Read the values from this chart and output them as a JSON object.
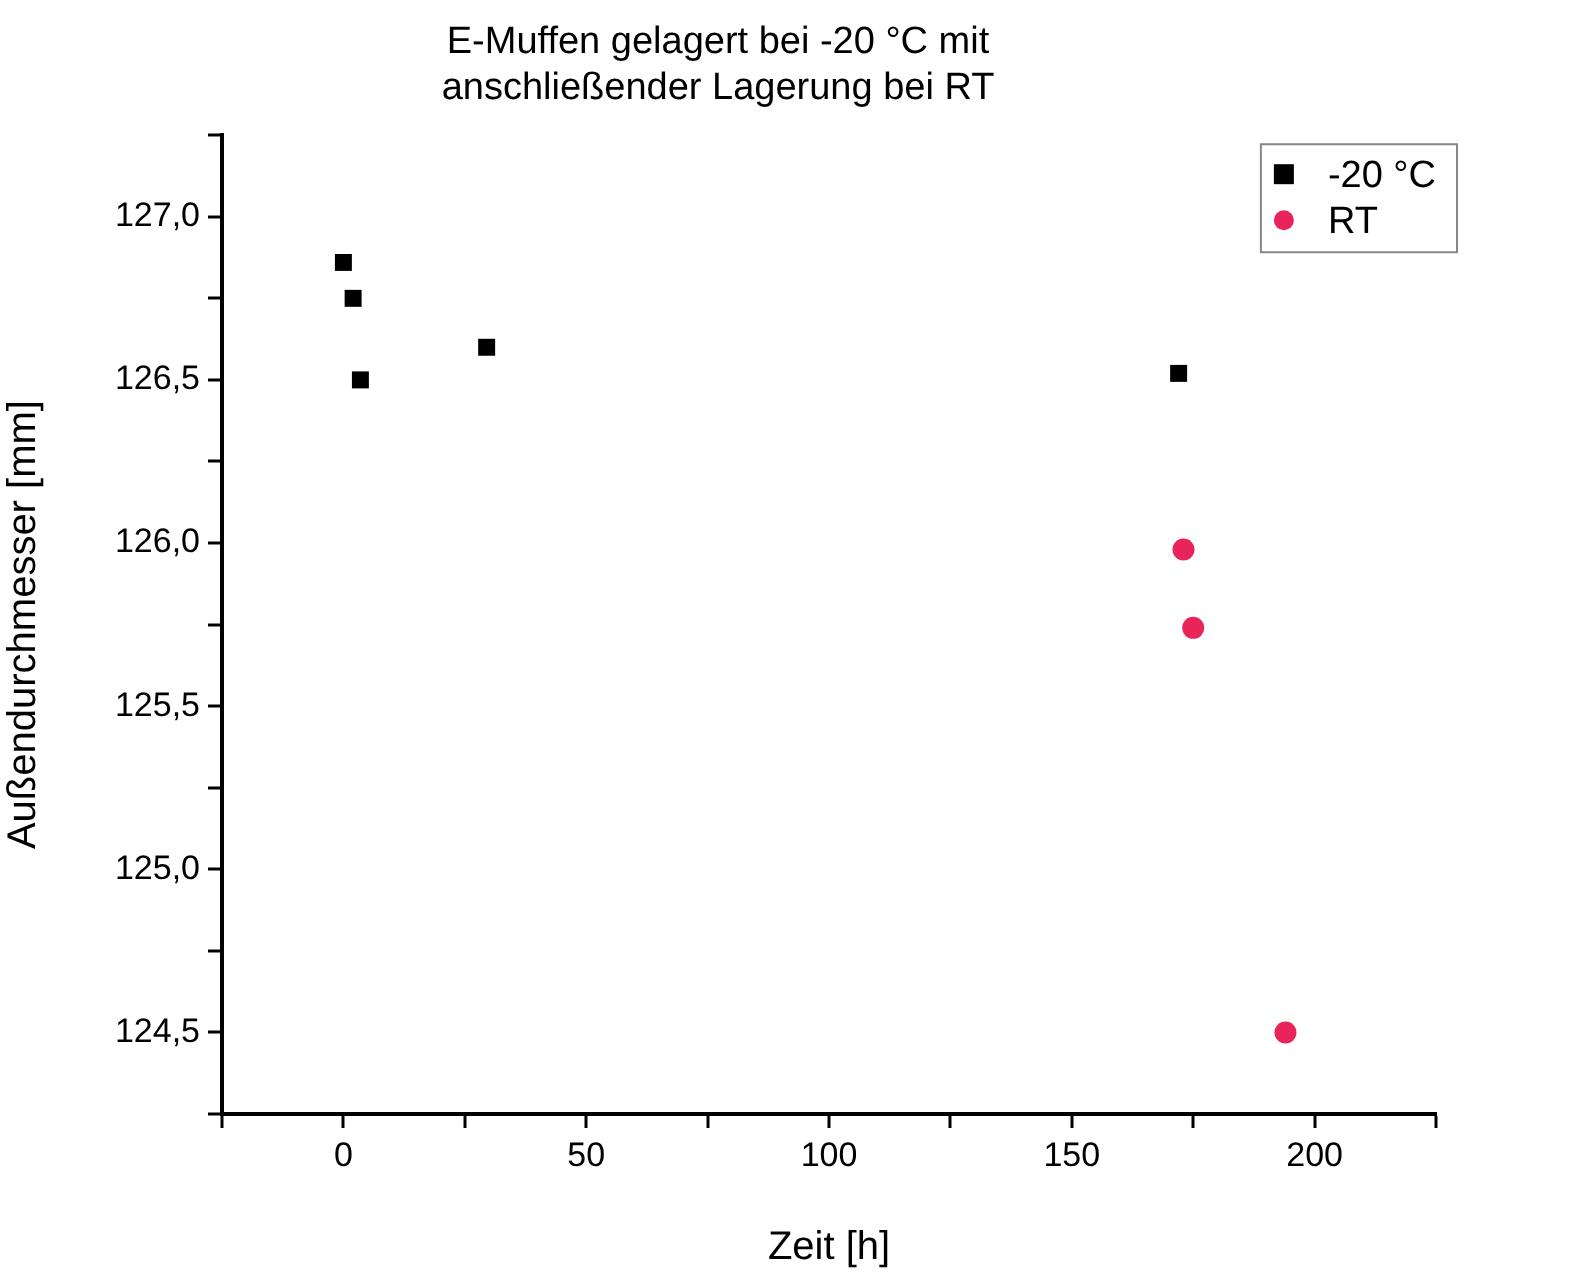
{
  "chart_data": {
    "type": "scatter",
    "title": "E-Muffen gelagert bei -20 °C mit anschließender Lagerung bei RT",
    "xlabel": "Zeit [h]",
    "ylabel": "Außendurchmesser [mm]",
    "xlim": [
      -25,
      225
    ],
    "xticks": [
      {
        "value": -25,
        "label": null
      },
      0,
      {
        "value": 25,
        "label": null
      },
      50,
      {
        "value": 75,
        "label": null
      },
      100,
      {
        "value": 125,
        "label": null
      },
      150,
      {
        "value": 175,
        "label": null
      },
      200,
      {
        "value": 225,
        "label": null
      }
    ],
    "ylim": [
      124.25,
      127.25
    ],
    "yticks": [
      {
        "value": 124.25,
        "label": null
      },
      {
        "value": 124.5,
        "label": "124,5"
      },
      {
        "value": 124.75,
        "label": null
      },
      {
        "value": 125,
        "label": "125,0"
      },
      {
        "value": 125.25,
        "label": null
      },
      {
        "value": 125.5,
        "label": "125,5"
      },
      {
        "value": 125.75,
        "label": null
      },
      {
        "value": 126,
        "label": "126,0"
      },
      {
        "value": 126.25,
        "label": null
      },
      {
        "value": 126.5,
        "label": "126,5"
      },
      {
        "value": 126.75,
        "label": null
      },
      {
        "value": 127,
        "label": "127,0"
      },
      {
        "value": 127.25,
        "label": null
      }
    ],
    "grid": false,
    "legend": "top right",
    "series": [
      {
        "name": "-20 °C",
        "color": "#000000",
        "marker": "square",
        "x": [
          0,
          2,
          3.5,
          29.5,
          172
        ],
        "values": [
          126.86,
          126.75,
          126.5,
          126.6,
          126.52
        ]
      },
      {
        "name": "RT",
        "color": "#e8245a",
        "marker": "circle",
        "x": [
          173,
          175,
          194
        ],
        "values": [
          125.98,
          125.74,
          124.5
        ]
      }
    ]
  }
}
